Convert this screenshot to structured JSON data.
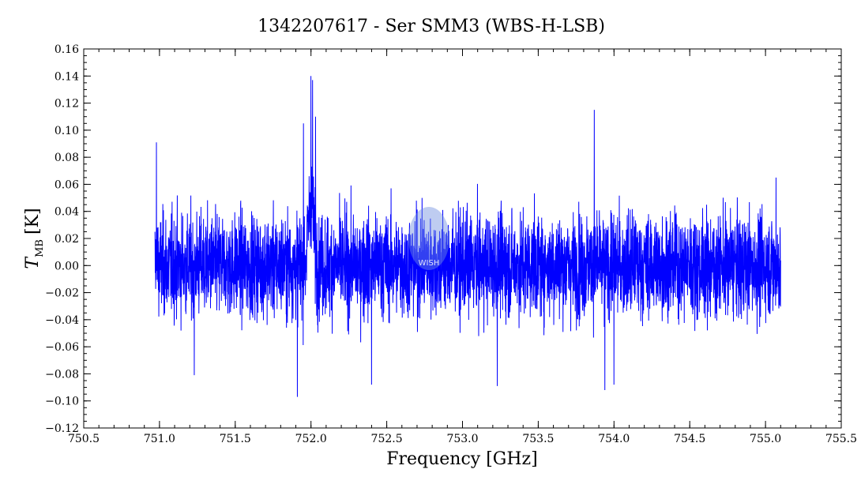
{
  "chart_data": {
    "type": "line",
    "title": "1342207617 - Ser SMM3 (WBS-H-LSB)",
    "xlabel": "Frequency [GHz]",
    "ylabel_main": "T",
    "ylabel_sub": "MB",
    "ylabel_unit": "[K]",
    "xlim": [
      750.5,
      755.5
    ],
    "ylim": [
      -0.12,
      0.16
    ],
    "x_major_ticks": [
      750.5,
      751.0,
      751.5,
      752.0,
      752.5,
      753.0,
      753.5,
      754.0,
      754.5,
      755.0,
      755.5
    ],
    "x_tick_labels": [
      "750.5",
      "751.0",
      "751.5",
      "752.0",
      "752.5",
      "753.0",
      "753.5",
      "754.0",
      "754.5",
      "755.0",
      "755.5"
    ],
    "y_major_ticks": [
      -0.12,
      -0.1,
      -0.08,
      -0.06,
      -0.04,
      -0.02,
      0.0,
      0.02,
      0.04,
      0.06,
      0.08,
      0.1,
      0.12,
      0.14,
      0.16
    ],
    "y_tick_labels": [
      "−0.12",
      "−0.10",
      "−0.08",
      "−0.06",
      "−0.04",
      "−0.02",
      "0.00",
      "0.02",
      "0.04",
      "0.06",
      "0.08",
      "0.10",
      "0.12",
      "0.14",
      "0.16"
    ],
    "grid": false,
    "legend": "none",
    "series": [
      {
        "color": "#0000ff",
        "x_start": 750.97,
        "x_end": 755.1,
        "noise_rms": 0.025,
        "features": [
          {
            "x": 750.98,
            "y": 0.091
          },
          {
            "x": 751.23,
            "y": -0.081
          },
          {
            "x": 751.91,
            "y": -0.097
          },
          {
            "x": 751.95,
            "y": 0.105
          },
          {
            "x": 752.0,
            "y": 0.14
          },
          {
            "x": 752.01,
            "y": 0.137
          },
          {
            "x": 752.03,
            "y": 0.11
          },
          {
            "x": 752.4,
            "y": -0.088
          },
          {
            "x": 753.23,
            "y": -0.089
          },
          {
            "x": 753.87,
            "y": 0.115
          },
          {
            "x": 753.94,
            "y": -0.092
          },
          {
            "x": 754.0,
            "y": -0.088
          },
          {
            "x": 755.07,
            "y": 0.065
          }
        ]
      }
    ],
    "watermark": "WISH"
  }
}
